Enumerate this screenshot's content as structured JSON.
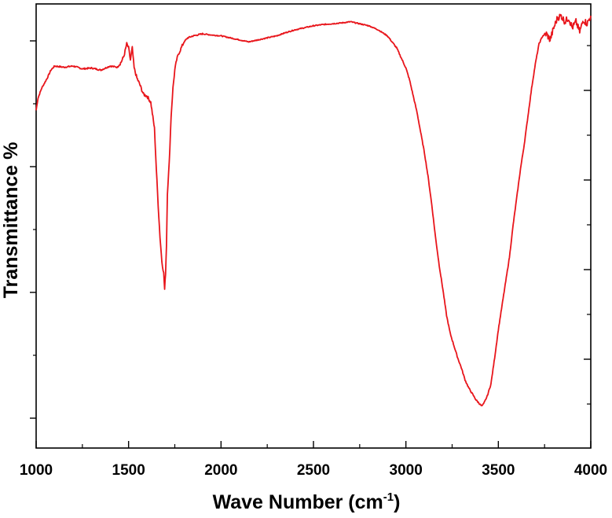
{
  "chart_data": {
    "type": "line",
    "title": "",
    "xlabel": "Wave Number (cm",
    "xlabel_sup": "-1",
    "xlabel_close": ")",
    "ylabel": "Transmittance %",
    "xlim": [
      1000,
      4000
    ],
    "ylim": [
      0,
      100
    ],
    "x_ticks": [
      1000,
      1500,
      2000,
      2500,
      3000,
      3500,
      4000
    ],
    "x_tick_labels": [
      "1000",
      "1500",
      "2000",
      "2500",
      "3000",
      "3500",
      "4000"
    ],
    "y_tick_labels_shown": false,
    "grid": false,
    "legend": "none",
    "line_color": "#e8151b",
    "series": [
      {
        "x": [
          1000,
          1010,
          1030,
          1060,
          1080,
          1100,
          1150,
          1200,
          1250,
          1300,
          1350,
          1400,
          1440,
          1460,
          1475,
          1490,
          1500,
          1510,
          1520,
          1530,
          1545,
          1560,
          1580,
          1600,
          1620,
          1640,
          1650,
          1660,
          1670,
          1680,
          1690,
          1695,
          1700,
          1705,
          1710,
          1720,
          1730,
          1740,
          1750,
          1760,
          1770,
          1780,
          1790,
          1800,
          1820,
          1850,
          1900,
          1950,
          2000,
          2050,
          2100,
          2150,
          2200,
          2250,
          2300,
          2350,
          2400,
          2450,
          2500,
          2550,
          2600,
          2650,
          2700,
          2750,
          2800,
          2850,
          2900,
          2950,
          3000,
          3020,
          3040,
          3060,
          3080,
          3100,
          3120,
          3140,
          3160,
          3180,
          3200,
          3220,
          3240,
          3260,
          3280,
          3300,
          3320,
          3340,
          3360,
          3380,
          3400,
          3410,
          3420,
          3430,
          3440,
          3460,
          3480,
          3500,
          3520,
          3540,
          3560,
          3580,
          3600,
          3620,
          3640,
          3660,
          3680,
          3700,
          3720,
          3740,
          3760,
          3780,
          3800,
          3820,
          3840,
          3860,
          3880,
          3900,
          3920,
          3940,
          3960,
          3980,
          4000
        ],
        "y": [
          76.5,
          79.5,
          82,
          84.5,
          86.5,
          87.5,
          87.2,
          87.5,
          86.8,
          87,
          86.5,
          87.5,
          87.2,
          88.5,
          90,
          93,
          92,
          89,
          92,
          87,
          84.5,
          83,
          80.5,
          80,
          78.5,
          72,
          62,
          53,
          45,
          39,
          36,
          32,
          36,
          43,
          56,
          63.5,
          75,
          82,
          86.5,
          89,
          90.5,
          91.5,
          92.5,
          93.5,
          94.5,
          95,
          95.5,
          95.2,
          95,
          94.5,
          94,
          93.5,
          94,
          94.5,
          95,
          95.8,
          96.5,
          97,
          97.5,
          97.8,
          98,
          98.2,
          98.5,
          98,
          97.5,
          96.5,
          95,
          92,
          87,
          84,
          80,
          76,
          71,
          66,
          60,
          53,
          45,
          38,
          32,
          25.5,
          21,
          18,
          15,
          12.5,
          9.5,
          7.5,
          6,
          4.5,
          3.5,
          3,
          3.5,
          4.5,
          5.5,
          8.5,
          15,
          22,
          28,
          34,
          40,
          48,
          55,
          62,
          68,
          75,
          82,
          88,
          93,
          95,
          95.5,
          94,
          97,
          99.5,
          100,
          98.5,
          99.5,
          97,
          98.5,
          96,
          99,
          98,
          100
        ]
      }
    ]
  }
}
